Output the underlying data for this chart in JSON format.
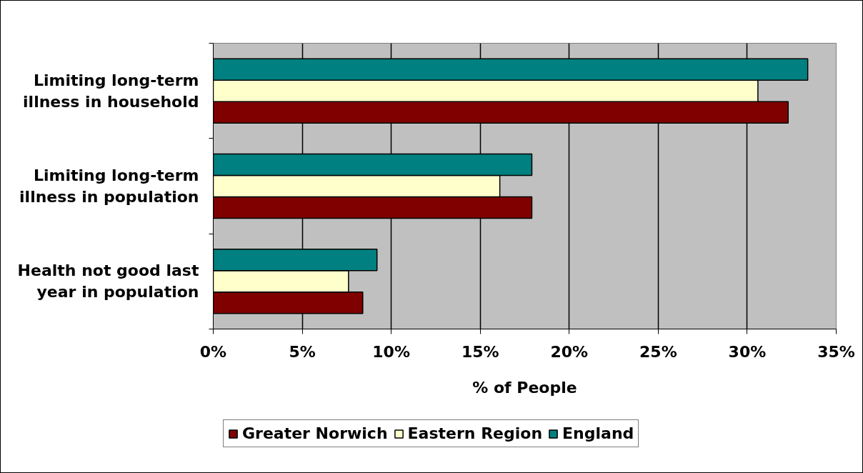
{
  "chart_data": {
    "type": "bar",
    "orientation": "horizontal",
    "categories": [
      "Limiting long-term illness in household",
      "Limiting long-term illness in population",
      "Health not good last year in population"
    ],
    "series": [
      {
        "name": "Greater Norwich",
        "color": "#800000",
        "values": [
          32.3,
          17.9,
          8.4
        ]
      },
      {
        "name": "Eastern Region",
        "color": "#ffffcc",
        "values": [
          30.6,
          16.1,
          7.6
        ]
      },
      {
        "name": "England",
        "color": "#008080",
        "values": [
          33.4,
          17.9,
          9.2
        ]
      }
    ],
    "xlabel": "% of People",
    "xlim": [
      0,
      35
    ],
    "xticks": [
      {
        "value": 0,
        "label": "0%"
      },
      {
        "value": 5,
        "label": "5%"
      },
      {
        "value": 10,
        "label": "10%"
      },
      {
        "value": 15,
        "label": "15%"
      },
      {
        "value": 20,
        "label": "20%"
      },
      {
        "value": 25,
        "label": "25%"
      },
      {
        "value": 30,
        "label": "30%"
      },
      {
        "value": 35,
        "label": "35%"
      }
    ],
    "grid": "x",
    "legend": "bottom"
  }
}
